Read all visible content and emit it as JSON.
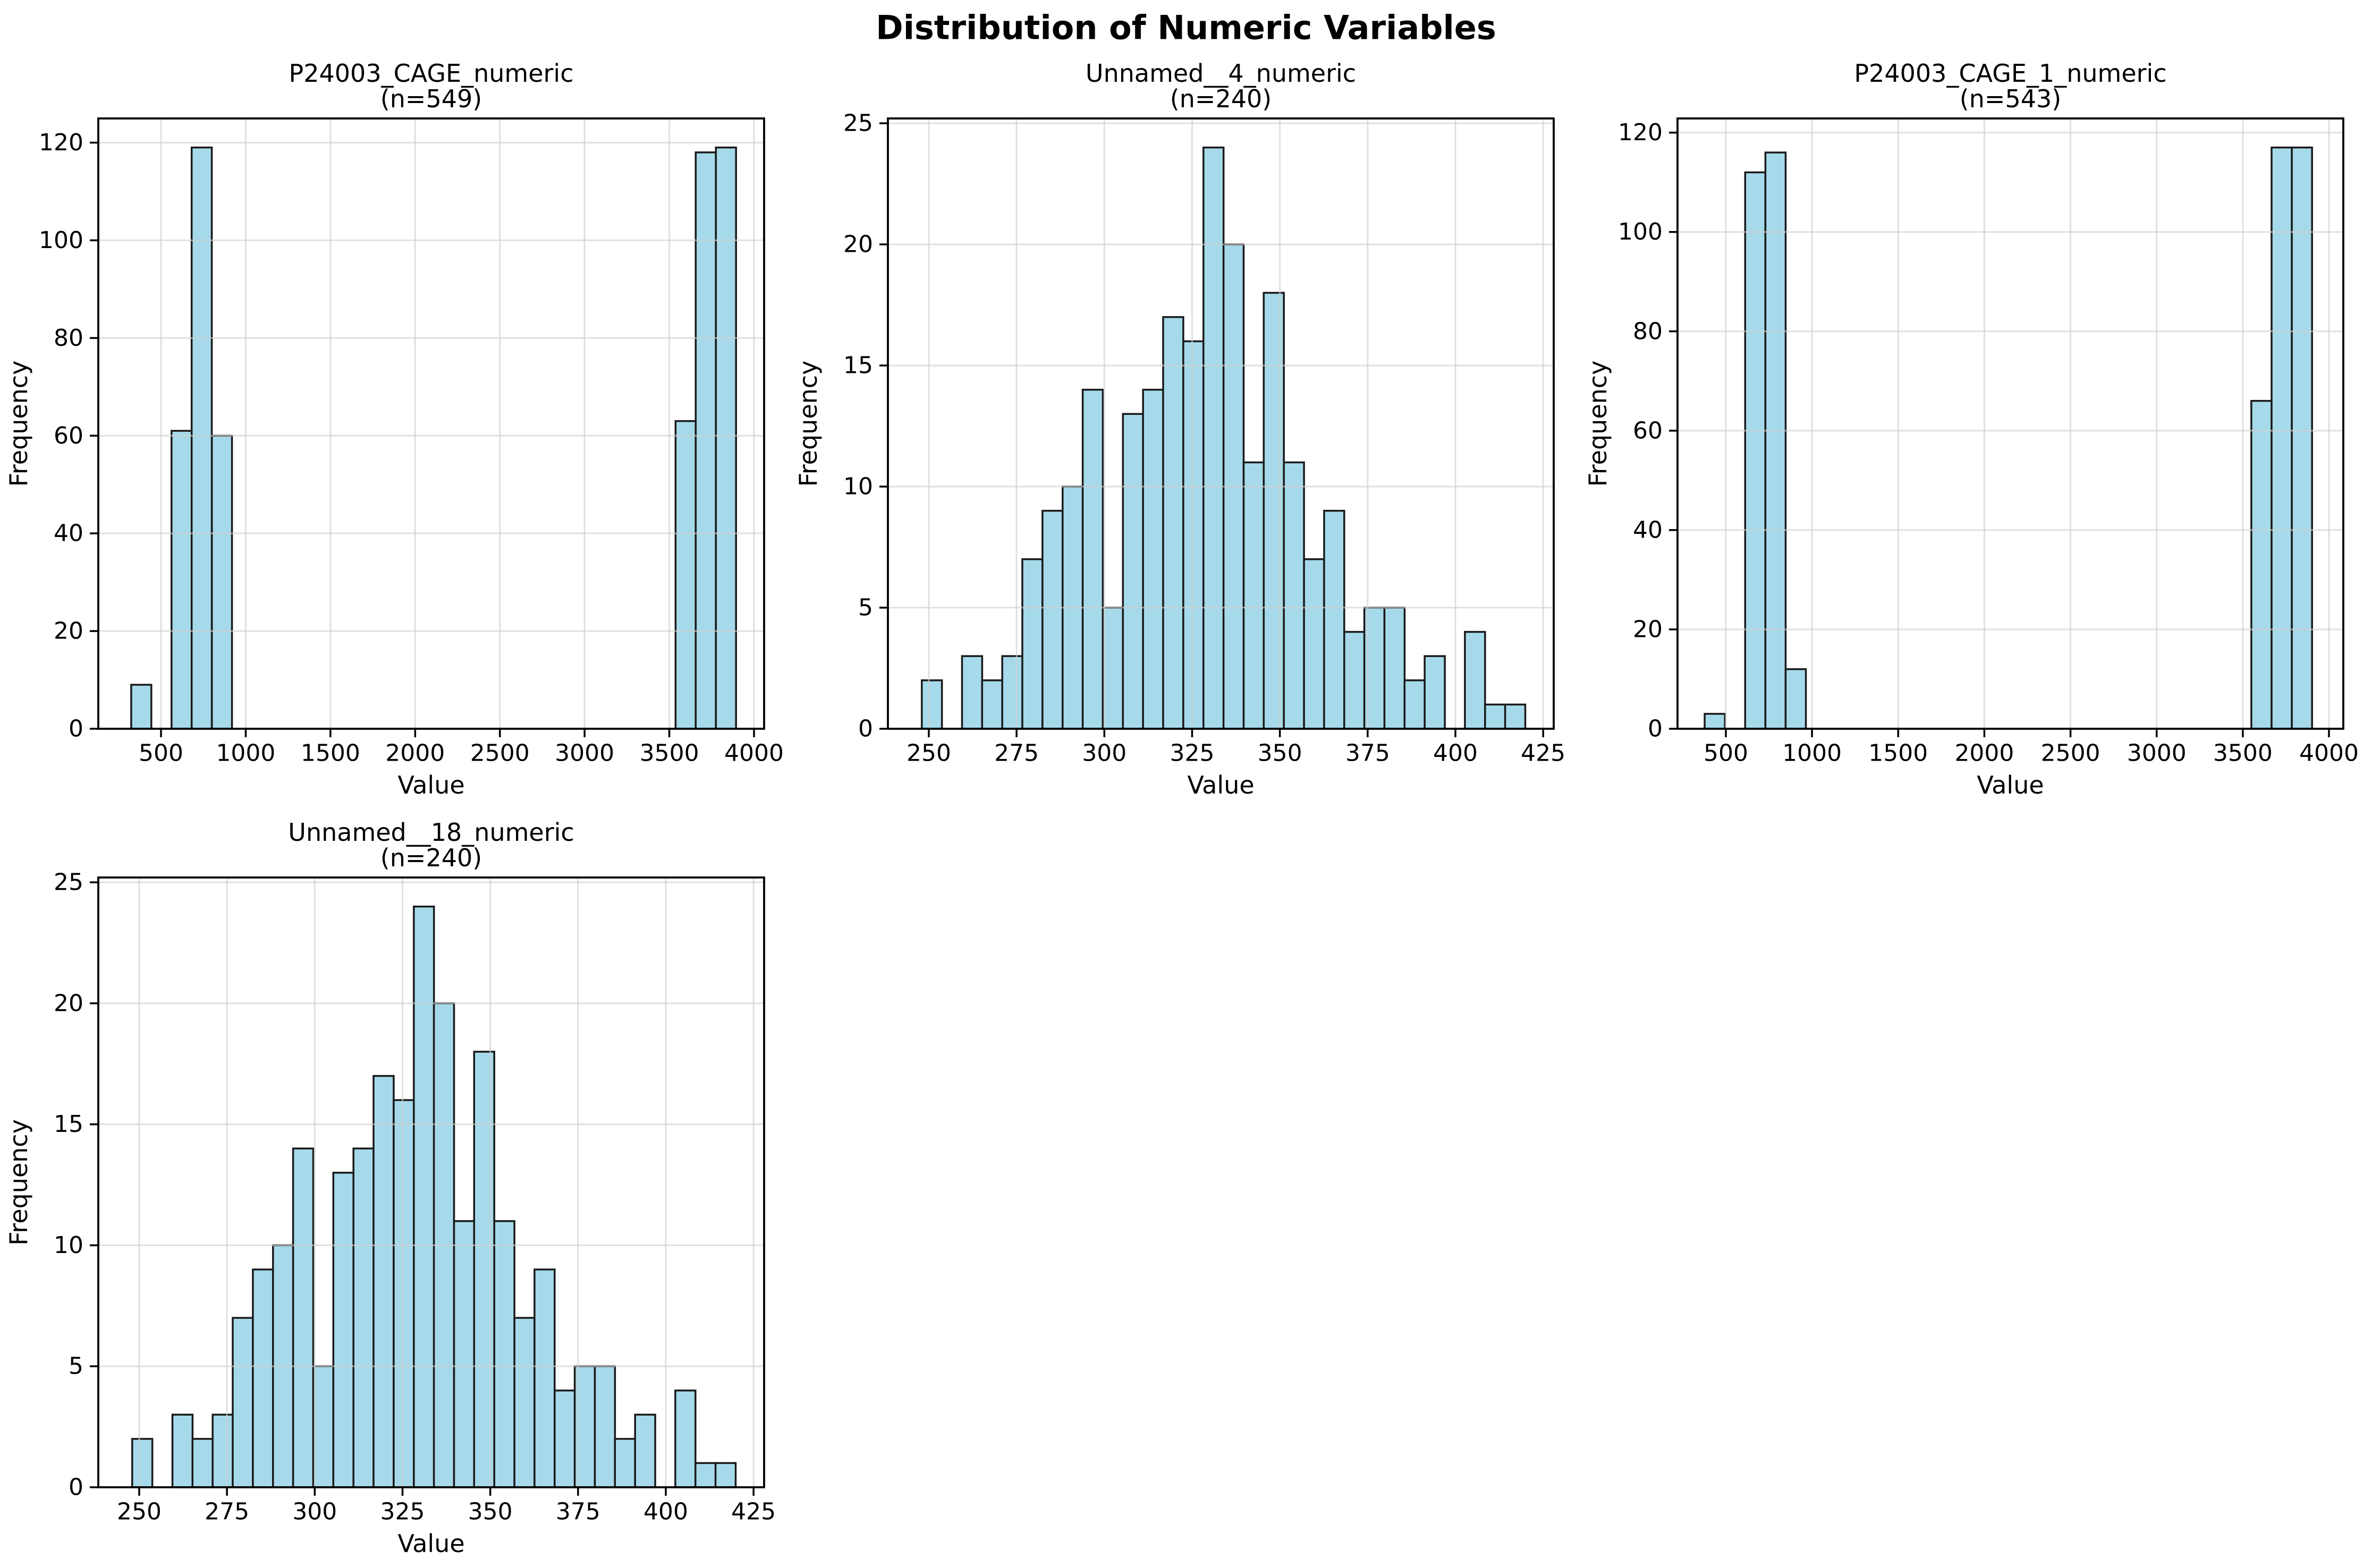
{
  "suptitle": "Distribution of Numeric Variables",
  "chart_data": [
    {
      "type": "bar",
      "title": "P24003_CAGE_numeric",
      "subtitle": "(n=549)",
      "n": 549,
      "xlabel": "Value",
      "ylabel": "Frequency",
      "bin_start": 324,
      "bin_width": 119,
      "counts": [
        9,
        0,
        61,
        119,
        60,
        0,
        0,
        0,
        0,
        0,
        0,
        0,
        0,
        0,
        0,
        0,
        0,
        0,
        0,
        0,
        0,
        0,
        0,
        0,
        0,
        0,
        0,
        63,
        118,
        119
      ],
      "xticks": [
        500,
        1000,
        1500,
        2000,
        2500,
        3000,
        3500,
        4000
      ],
      "yticks": [
        0,
        20,
        40,
        60,
        80,
        100,
        120
      ],
      "xlim": [
        129.9,
        4059.5
      ],
      "ylim": [
        0,
        124.95
      ],
      "grid": true,
      "bar_fill": "#A6DAEA",
      "bar_edge": "#1a1a1a"
    },
    {
      "type": "bar",
      "title": "Unnamed__4_numeric",
      "subtitle": "(n=240)",
      "n": 240,
      "xlabel": "Value",
      "ylabel": "Frequency",
      "bin_start": 248,
      "bin_width": 5.73,
      "counts": [
        2,
        0,
        3,
        2,
        3,
        7,
        9,
        10,
        14,
        5,
        13,
        14,
        17,
        16,
        24,
        20,
        11,
        18,
        11,
        7,
        9,
        4,
        5,
        5,
        2,
        3,
        0,
        4,
        1,
        1
      ],
      "xticks": [
        250,
        275,
        300,
        325,
        350,
        375,
        400,
        425
      ],
      "yticks": [
        0,
        5,
        10,
        15,
        20,
        25
      ],
      "xlim": [
        238.35,
        428.0
      ],
      "ylim": [
        0,
        25.2
      ],
      "grid": true,
      "bar_fill": "#A6DAEA",
      "bar_edge": "#1a1a1a"
    },
    {
      "type": "bar",
      "title": "P24003_CAGE_1_numeric",
      "subtitle": "(n=543)",
      "n": 543,
      "xlabel": "Value",
      "ylabel": "Frequency",
      "bin_start": 377,
      "bin_width": 117.5,
      "counts": [
        3,
        0,
        112,
        116,
        12,
        0,
        0,
        0,
        0,
        0,
        0,
        0,
        0,
        0,
        0,
        0,
        0,
        0,
        0,
        0,
        0,
        0,
        0,
        0,
        0,
        0,
        0,
        66,
        117,
        117
      ],
      "xticks": [
        500,
        1000,
        1500,
        2000,
        2500,
        3000,
        3500,
        4000
      ],
      "yticks": [
        0,
        20,
        40,
        60,
        80,
        100,
        120
      ],
      "xlim": [
        219.4,
        4083.2
      ],
      "ylim": [
        0,
        122.85
      ],
      "grid": true,
      "bar_fill": "#A6DAEA",
      "bar_edge": "#1a1a1a"
    },
    {
      "type": "bar",
      "title": "Unnamed__18_numeric",
      "subtitle": "(n=240)",
      "n": 240,
      "xlabel": "Value",
      "ylabel": "Frequency",
      "bin_start": 248,
      "bin_width": 5.73,
      "counts": [
        2,
        0,
        3,
        2,
        3,
        7,
        9,
        10,
        14,
        5,
        13,
        14,
        17,
        16,
        24,
        20,
        11,
        18,
        11,
        7,
        9,
        4,
        5,
        5,
        2,
        3,
        0,
        4,
        1,
        1
      ],
      "xticks": [
        250,
        275,
        300,
        325,
        350,
        375,
        400,
        425
      ],
      "yticks": [
        0,
        5,
        10,
        15,
        20,
        25
      ],
      "xlim": [
        238.35,
        428.0
      ],
      "ylim": [
        0,
        25.2
      ],
      "grid": true,
      "bar_fill": "#A6DAEA",
      "bar_edge": "#1a1a1a"
    }
  ]
}
